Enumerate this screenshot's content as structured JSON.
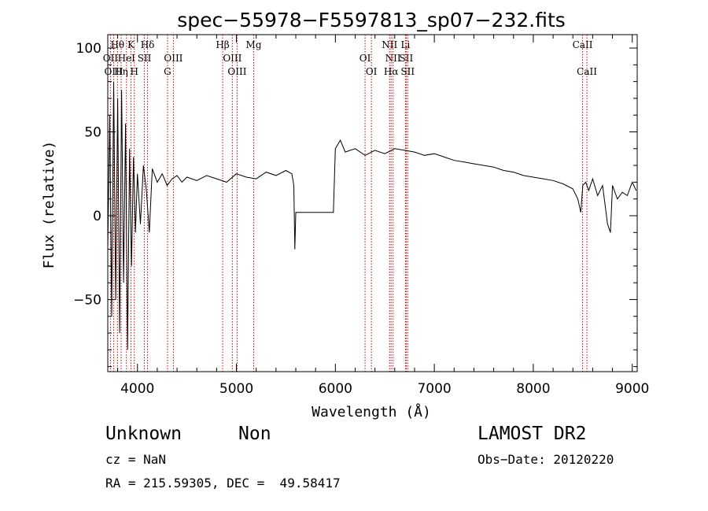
{
  "chart_data": {
    "type": "line",
    "title": "spec−55978−F5597813_sp07−232.fits",
    "xlabel": "Wavelength (Å)",
    "ylabel": "Flux (relative)",
    "xlim": [
      3700,
      9050
    ],
    "ylim": [
      -93,
      108
    ],
    "x_ticks": [
      4000,
      5000,
      6000,
      7000,
      8000,
      9000
    ],
    "x_tick_labels": [
      "4000",
      "5000",
      "6000",
      "7000",
      "8000",
      "9000"
    ],
    "y_ticks": [
      -50,
      0,
      50,
      100
    ],
    "y_tick_labels": [
      "−50",
      "0",
      "50",
      "100"
    ],
    "series": [
      {
        "x": [
          3700,
          3720,
          3740,
          3760,
          3780,
          3800,
          3820,
          3840,
          3860,
          3880,
          3900,
          3920,
          3940,
          3960,
          3980,
          4000,
          4030,
          4060,
          4090,
          4120,
          4150,
          4200,
          4250,
          4300,
          4350,
          4400,
          4450,
          4500,
          4600,
          4700,
          4800,
          4900,
          5000,
          5100,
          5200,
          5300,
          5400,
          5500,
          5560,
          5580,
          5590,
          5600,
          5700,
          5800,
          5900,
          5980,
          6000,
          6050,
          6100,
          6200,
          6300,
          6400,
          6500,
          6600,
          6700,
          6800,
          6900,
          7000,
          7100,
          7200,
          7300,
          7400,
          7500,
          7600,
          7700,
          7800,
          7900,
          8000,
          8100,
          8200,
          8300,
          8400,
          8450,
          8480,
          8500,
          8530,
          8560,
          8600,
          8650,
          8700,
          8750,
          8780,
          8800,
          8850,
          8900,
          8950,
          9000,
          9040
        ],
        "y": [
          -20,
          60,
          -60,
          80,
          -50,
          70,
          -70,
          75,
          -40,
          55,
          -80,
          40,
          -30,
          35,
          -10,
          25,
          -5,
          30,
          15,
          -10,
          28,
          20,
          25,
          18,
          22,
          24,
          20,
          23,
          21,
          24,
          22,
          20,
          25,
          23,
          22,
          26,
          24,
          27,
          25,
          18,
          -20,
          2,
          2,
          2,
          2,
          2,
          40,
          45,
          38,
          40,
          36,
          39,
          37,
          40,
          39,
          38,
          36,
          37,
          35,
          33,
          32,
          31,
          30,
          29,
          27,
          26,
          24,
          23,
          22,
          21,
          19,
          16,
          10,
          2,
          18,
          20,
          15,
          22,
          12,
          18,
          -5,
          -10,
          18,
          10,
          14,
          12,
          20,
          15
        ]
      }
    ],
    "lines_top": [
      {
        "label": "Hθ",
        "x": 3798
      },
      {
        "label": "K",
        "x": 3934
      },
      {
        "label": "Hδ",
        "x": 4102
      },
      {
        "label": "Hβ",
        "x": 4861
      },
      {
        "label": "Mg",
        "x": 5175
      },
      {
        "label": "NII",
        "x": 6548
      },
      {
        "label": "Li",
        "x": 6708
      },
      {
        "label": "CaII",
        "x": 8498
      }
    ],
    "lines_mid": [
      {
        "label": "OII",
        "x": 3727
      },
      {
        "label": "HeI",
        "x": 3889
      },
      {
        "label": "SII",
        "x": 4070
      },
      {
        "label": "OIII",
        "x": 4363
      },
      {
        "label": "OIII",
        "x": 4959
      },
      {
        "label": "OI",
        "x": 6300
      },
      {
        "label": "NII",
        "x": 6583
      },
      {
        "label": "SII",
        "x": 6716
      }
    ],
    "lines_low": [
      {
        "label": "OIII",
        "x": 3760
      },
      {
        "label": "Hη",
        "x": 3835
      },
      {
        "label": "H",
        "x": 3968
      },
      {
        "label": "G",
        "x": 4304
      },
      {
        "label": "OIII",
        "x": 5007
      },
      {
        "label": "OI",
        "x": 6364
      },
      {
        "label": "Hα",
        "x": 6563
      },
      {
        "label": "SII",
        "x": 6731
      },
      {
        "label": "CaII",
        "x": 8542
      }
    ],
    "line_color": "#000000",
    "marker_color": "#cc0000"
  },
  "info": {
    "object_class": "Unknown",
    "subclass": "Non",
    "survey": "LAMOST DR2",
    "redshift": "cz = NaN",
    "obs_date": "Obs−Date: 20120220",
    "coords": "RA = 215.59305, DEC =  49.58417"
  }
}
